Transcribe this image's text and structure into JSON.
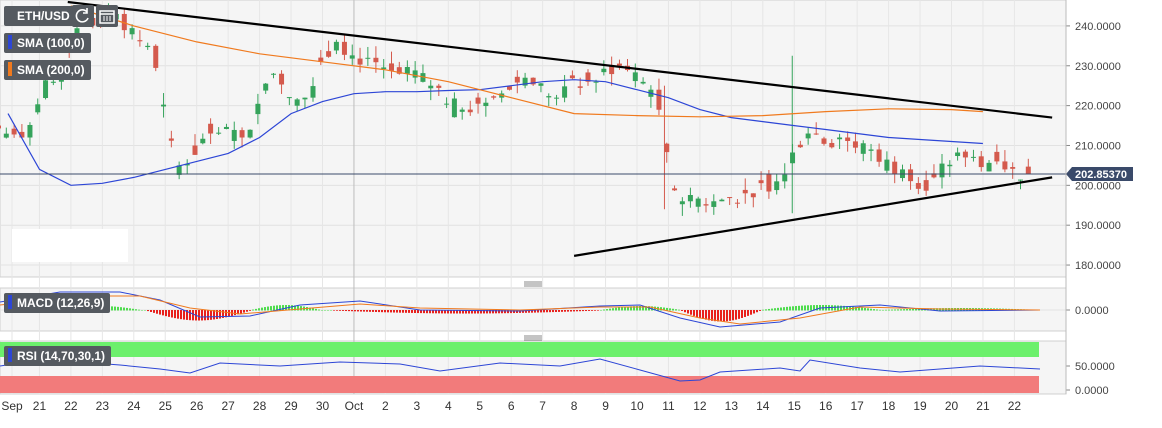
{
  "header": {
    "symbol": "ETH/USD",
    "indicators": [
      {
        "label": "SMA (100,0)",
        "color": "#2d46d6"
      },
      {
        "label": "SMA (200,0)",
        "color": "#f07a1e"
      }
    ],
    "icons": [
      "refresh-icon",
      "calendar-icon"
    ]
  },
  "price_axis": {
    "ticks": [
      "240.0000",
      "230.0000",
      "220.0000",
      "210.0000",
      "200.0000",
      "190.0000",
      "180.0000"
    ],
    "current_price": "202.85370",
    "current_price_value": 202.8537
  },
  "macd": {
    "label": "MACD (12,26,9)",
    "ticks": [
      "0.0000"
    ]
  },
  "rsi": {
    "label": "RSI (14,70,30,1)",
    "ticks": [
      "50.0000",
      "0.0000"
    ]
  },
  "date_axis": {
    "labels": [
      "Sep",
      "21",
      "22",
      "23",
      "24",
      "25",
      "26",
      "27",
      "28",
      "29",
      "30",
      "Oct",
      "2",
      "3",
      "4",
      "5",
      "6",
      "7",
      "8",
      "9",
      "10",
      "11",
      "12",
      "13",
      "14",
      "15",
      "16",
      "17",
      "18",
      "19",
      "20",
      "21",
      "22"
    ]
  },
  "colors": {
    "up": "#35a35b",
    "down": "#d45a4d",
    "sma100": "#2d46d6",
    "sma200": "#f07a1e",
    "trend": "#000000",
    "macd_pos": "#4ddc4d",
    "macd_neg": "#e8201c",
    "rsi_high": "#6cf06c",
    "rsi_low": "#f27b7b"
  },
  "chart_data": {
    "type": "candlestick",
    "symbol": "ETH/USD",
    "ylim": [
      177,
      246
    ],
    "x_start": "Sep 20",
    "x_end": "Oct 22",
    "daily_closes": [
      {
        "date": "Sep 20",
        "close": 212
      },
      {
        "date": "Sep 21",
        "close": 226
      },
      {
        "date": "Sep 22",
        "close": 242
      },
      {
        "date": "Sep 23",
        "close": 243
      },
      {
        "date": "Sep 24",
        "close": 235
      },
      {
        "date": "Sep 25",
        "close": 205
      },
      {
        "date": "Sep 26",
        "close": 213
      },
      {
        "date": "Sep 27",
        "close": 212
      },
      {
        "date": "Sep 28",
        "close": 228
      },
      {
        "date": "Sep 29",
        "close": 222
      },
      {
        "date": "Sep 30",
        "close": 236
      },
      {
        "date": "Oct 1",
        "close": 232
      },
      {
        "date": "Oct 2",
        "close": 228
      },
      {
        "date": "Oct 3",
        "close": 225
      },
      {
        "date": "Oct 4",
        "close": 219
      },
      {
        "date": "Oct 5",
        "close": 222
      },
      {
        "date": "Oct 6",
        "close": 227
      },
      {
        "date": "Oct 7",
        "close": 222
      },
      {
        "date": "Oct 8",
        "close": 226
      },
      {
        "date": "Oct 9",
        "close": 230
      },
      {
        "date": "Oct 10",
        "close": 224
      },
      {
        "date": "Oct 11",
        "close": 196
      },
      {
        "date": "Oct 12",
        "close": 196
      },
      {
        "date": "Oct 13",
        "close": 198
      },
      {
        "date": "Oct 14",
        "close": 201
      },
      {
        "date": "Oct 15",
        "close": 213
      },
      {
        "date": "Oct 16",
        "close": 212
      },
      {
        "date": "Oct 17",
        "close": 209
      },
      {
        "date": "Oct 18",
        "close": 204
      },
      {
        "date": "Oct 19",
        "close": 202
      },
      {
        "date": "Oct 20",
        "close": 207
      },
      {
        "date": "Oct 21",
        "close": 206
      },
      {
        "date": "Oct 22",
        "close": 202.85
      }
    ],
    "overlays": [
      {
        "name": "SMA (100,0)",
        "points": [
          [
            0,
            218
          ],
          [
            1,
            204
          ],
          [
            2,
            200
          ],
          [
            3,
            200.5
          ],
          [
            4,
            202
          ],
          [
            5,
            204
          ],
          [
            6,
            206
          ],
          [
            7,
            208
          ],
          [
            8,
            212
          ],
          [
            9,
            218
          ],
          [
            10,
            221
          ],
          [
            11,
            223
          ],
          [
            12,
            223.5
          ],
          [
            13,
            223.5
          ],
          [
            14,
            223.8
          ],
          [
            15,
            224
          ],
          [
            16,
            225
          ],
          [
            17,
            226
          ],
          [
            18,
            226.5
          ],
          [
            19,
            226
          ],
          [
            20,
            224
          ],
          [
            21,
            222
          ],
          [
            22,
            219
          ],
          [
            23,
            217
          ],
          [
            24,
            216
          ],
          [
            25,
            215
          ],
          [
            26,
            214
          ],
          [
            27,
            213
          ],
          [
            28,
            212
          ],
          [
            29,
            211.5
          ],
          [
            30,
            211
          ],
          [
            31,
            210.5
          ]
        ]
      },
      {
        "name": "SMA (200,0)",
        "points": [
          [
            2,
            245
          ],
          [
            4,
            240
          ],
          [
            6,
            236
          ],
          [
            8,
            233
          ],
          [
            10,
            231
          ],
          [
            12,
            229
          ],
          [
            14,
            226
          ],
          [
            16,
            222
          ],
          [
            18,
            218
          ],
          [
            20,
            217.5
          ],
          [
            22,
            217.2
          ],
          [
            24,
            217.5
          ],
          [
            26,
            218.5
          ],
          [
            28,
            219.2
          ],
          [
            30,
            219
          ],
          [
            31,
            218.5
          ]
        ]
      }
    ],
    "trendlines": [
      {
        "name": "resistance",
        "points": [
          [
            1.9,
            246
          ],
          [
            33.2,
            217
          ]
        ]
      },
      {
        "name": "support",
        "points": [
          [
            18,
            182.3
          ],
          [
            33.2,
            202
          ]
        ]
      }
    ]
  }
}
